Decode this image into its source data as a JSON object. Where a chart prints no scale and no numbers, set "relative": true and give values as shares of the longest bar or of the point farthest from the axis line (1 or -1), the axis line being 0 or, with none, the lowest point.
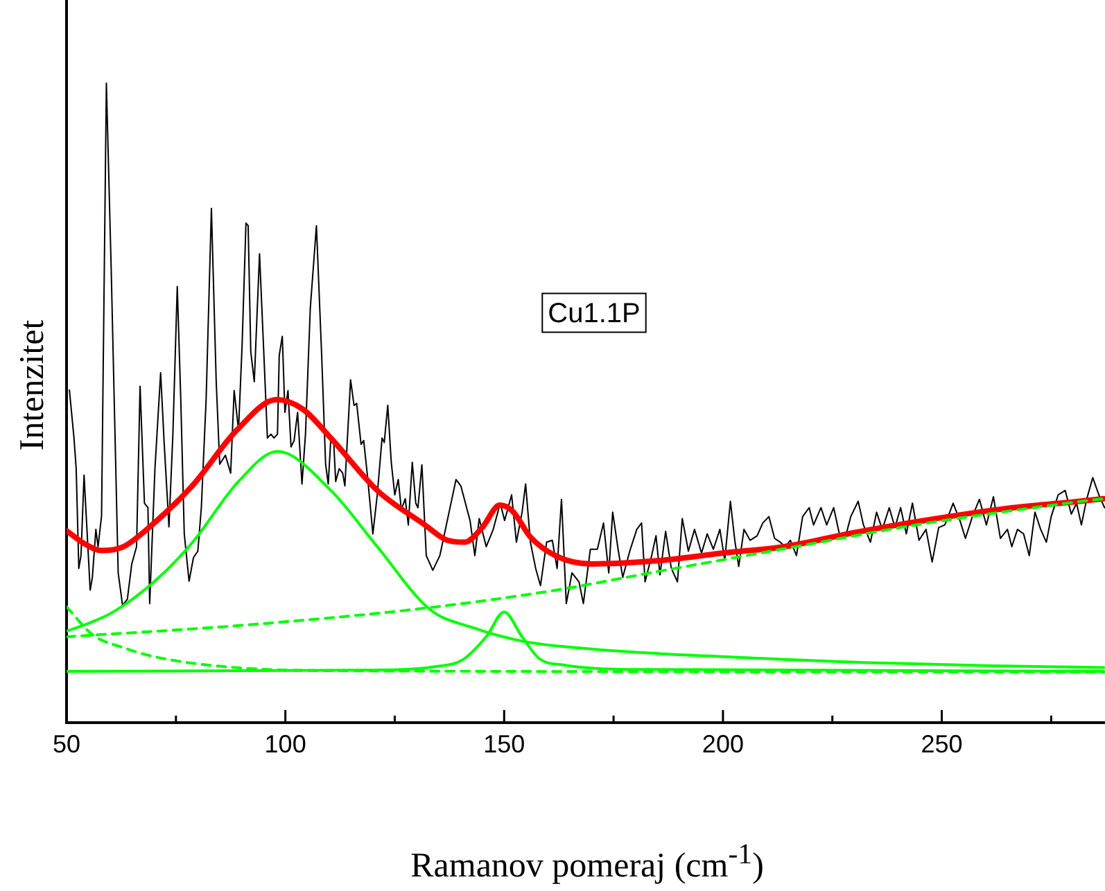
{
  "chart_data": {
    "type": "line",
    "xlabel": "Ramanov pomeraj (cm$^{-1}$)",
    "ylabel": "Intenzitet",
    "annotations": [
      "Cu1.1P"
    ],
    "relative": true,
    "grid": false,
    "legend": false,
    "marker": "none",
    "xlim": [
      50,
      287.3
    ],
    "xticks": [
      50,
      {
        "value": 75,
        "label": null
      },
      100,
      {
        "value": 125,
        "label": null
      },
      150,
      {
        "value": 175,
        "label": null
      },
      200,
      {
        "value": 225,
        "label": null
      },
      250,
      {
        "value": 275,
        "label": null
      }
    ],
    "series": [
      {
        "color": "#000000",
        "line_style": "solid",
        "x": [
          50.65,
          51.7,
          52.2,
          52.8,
          53.3,
          54.0,
          55.4,
          55.9,
          56.7,
          57.2,
          58.0,
          59.1,
          60.2,
          61.8,
          62.8,
          63.9,
          64.9,
          66.0,
          66.8,
          67.8,
          68.6,
          69.0,
          70.2,
          71.5,
          72.3,
          73.4,
          74.3,
          75.3,
          76.1,
          76.9,
          78.0,
          79.0,
          80.0,
          80.8,
          81.9,
          83.1,
          84.2,
          85.0,
          86.3,
          87.5,
          88.3,
          89.3,
          90.1,
          91.0,
          91.5,
          92.1,
          92.9,
          94.1,
          95.1,
          95.9,
          96.7,
          97.4,
          98.2,
          98.6,
          99.3,
          99.9,
          100.6,
          101.3,
          102.0,
          102.8,
          103.8,
          104.6,
          105.7,
          107.1,
          108.3,
          109.2,
          109.8,
          110.4,
          111.0,
          111.5,
          112.3,
          113.1,
          113.6,
          114.9,
          115.7,
          116.3,
          117.3,
          117.9,
          118.7,
          120.0,
          121.0,
          122.1,
          122.6,
          123.4,
          124.2,
          125.0,
          125.8,
          126.5,
          127.4,
          128.1,
          129.0,
          129.8,
          130.3,
          131.2,
          132.2,
          133.7,
          135.3,
          139.0,
          140.1,
          142.2,
          143.3,
          144.3,
          145.9,
          147.5,
          149.1,
          150.1,
          151.7,
          152.8,
          154.1,
          154.9,
          156.0,
          157.2,
          158.3,
          159.7,
          161.0,
          162.1,
          163.1,
          164.2,
          165.5,
          167.1,
          168.1,
          169.7,
          171.3,
          172.7,
          173.9,
          174.8,
          176.1,
          177.1,
          178.7,
          180.3,
          181.4,
          182.2,
          183.7,
          184.7,
          185.6,
          186.9,
          188.2,
          189.6,
          190.7,
          192.1,
          193.5,
          195.1,
          196.4,
          197.8,
          199.3,
          200.4,
          201.7,
          202.7,
          203.6,
          204.8,
          206.2,
          207.8,
          209.1,
          210.5,
          211.8,
          213.1,
          214.2,
          215.4,
          216.8,
          218.2,
          219.7,
          220.7,
          222.4,
          223.7,
          225.3,
          226.6,
          227.9,
          229.2,
          230.9,
          232.1,
          233.7,
          235.1,
          236.4,
          238.0,
          239.3,
          240.6,
          241.9,
          243.3,
          244.8,
          246.4,
          247.8,
          249.3,
          250.7,
          252.6,
          254.2,
          255.4,
          257.0,
          258.6,
          260.2,
          261.8,
          263.4,
          265.0,
          266.0,
          267.3,
          268.7,
          270.0,
          271.3,
          272.6,
          273.9,
          275.0,
          276.6,
          278.2,
          279.6,
          280.8,
          281.9,
          283.1,
          284.5,
          285.9,
          287.2
        ],
        "values": [
          0.52,
          0.445,
          0.397,
          0.241,
          0.261,
          0.387,
          0.207,
          0.227,
          0.302,
          0.275,
          0.323,
          1.0,
          0.71,
          0.234,
          0.183,
          0.193,
          0.248,
          0.275,
          0.526,
          0.343,
          0.336,
          0.186,
          0.397,
          0.547,
          0.438,
          0.306,
          0.451,
          0.682,
          0.506,
          0.295,
          0.221,
          0.258,
          0.268,
          0.336,
          0.506,
          0.804,
          0.533,
          0.404,
          0.418,
          0.39,
          0.519,
          0.458,
          0.587,
          0.781,
          0.777,
          0.58,
          0.533,
          0.733,
          0.574,
          0.445,
          0.451,
          0.445,
          0.451,
          0.574,
          0.604,
          0.485,
          0.519,
          0.431,
          0.441,
          0.485,
          0.373,
          0.451,
          0.648,
          0.777,
          0.574,
          0.404,
          0.373,
          0.445,
          0.445,
          0.377,
          0.397,
          0.39,
          0.37,
          0.536,
          0.496,
          0.499,
          0.435,
          0.441,
          0.39,
          0.295,
          0.356,
          0.445,
          0.438,
          0.496,
          0.407,
          0.356,
          0.38,
          0.333,
          0.35,
          0.309,
          0.407,
          0.343,
          0.336,
          0.403,
          0.261,
          0.238,
          0.261,
          0.38,
          0.37,
          0.316,
          0.261,
          0.319,
          0.275,
          0.302,
          0.343,
          0.316,
          0.356,
          0.282,
          0.329,
          0.373,
          0.282,
          0.241,
          0.214,
          0.282,
          0.285,
          0.241,
          0.349,
          0.186,
          0.234,
          0.22,
          0.186,
          0.271,
          0.271,
          0.312,
          0.234,
          0.329,
          0.268,
          0.227,
          0.268,
          0.302,
          0.312,
          0.22,
          0.261,
          0.292,
          0.231,
          0.299,
          0.241,
          0.22,
          0.319,
          0.268,
          0.302,
          0.265,
          0.295,
          0.271,
          0.302,
          0.254,
          0.346,
          0.285,
          0.244,
          0.302,
          0.285,
          0.292,
          0.312,
          0.322,
          0.288,
          0.282,
          0.275,
          0.285,
          0.261,
          0.322,
          0.336,
          0.309,
          0.336,
          0.309,
          0.336,
          0.295,
          0.288,
          0.322,
          0.346,
          0.309,
          0.282,
          0.329,
          0.302,
          0.336,
          0.305,
          0.336,
          0.295,
          0.343,
          0.285,
          0.302,
          0.251,
          0.305,
          0.309,
          0.343,
          0.315,
          0.288,
          0.322,
          0.349,
          0.309,
          0.353,
          0.288,
          0.302,
          0.275,
          0.302,
          0.295,
          0.261,
          0.329,
          0.302,
          0.282,
          0.322,
          0.356,
          0.363,
          0.326,
          0.343,
          0.309,
          0.349,
          0.383,
          0.356,
          0.336
        ]
      },
      {
        "color": "#ff0000",
        "line_style": "solid",
        "x": [
          50,
          54,
          58,
          63,
          68,
          78.7,
          89,
          98,
          104,
          110.5,
          121,
          131.7,
          137,
          141,
          145,
          149,
          152,
          156,
          162,
          170,
          185,
          200,
          214,
          230,
          246,
          265,
          280,
          287
        ],
        "values": [
          0.3,
          0.28,
          0.269,
          0.275,
          0.3,
          0.37,
          0.458,
          0.505,
          0.49,
          0.444,
          0.363,
          0.31,
          0.285,
          0.282,
          0.305,
          0.34,
          0.33,
          0.29,
          0.26,
          0.248,
          0.253,
          0.265,
          0.275,
          0.297,
          0.316,
          0.335,
          0.345,
          0.35
        ]
      },
      {
        "color": "#00ff00",
        "line_style": "solid",
        "x": [
          50,
          55,
          60.7,
          70,
          78.7,
          89.3,
          98.2,
          110.4,
          121,
          133,
          143,
          154.3,
          170,
          185,
          210,
          231,
          260,
          287
        ],
        "values": [
          0.143,
          0.155,
          0.173,
          0.22,
          0.281,
          0.377,
          0.424,
          0.363,
          0.275,
          0.177,
          0.148,
          0.127,
          0.115,
          0.108,
          0.1,
          0.094,
          0.089,
          0.086
        ]
      },
      {
        "color": "#00ff00",
        "line_style": "solid",
        "x": [
          50,
          120,
          135,
          140.5,
          146,
          150,
          154,
          158,
          163.5,
          180,
          287
        ],
        "values": [
          0.08,
          0.082,
          0.088,
          0.098,
          0.135,
          0.173,
          0.135,
          0.1,
          0.09,
          0.083,
          0.08
        ]
      },
      {
        "color": "#00ff00",
        "line_style": "dashed",
        "x": [
          50,
          90,
          129.5,
          160,
          185,
          215,
          245,
          277.6,
          287
        ],
        "values": [
          0.134,
          0.152,
          0.177,
          0.205,
          0.236,
          0.273,
          0.31,
          0.342,
          0.35
        ]
      },
      {
        "color": "#00ff00",
        "line_style": "dashed",
        "x": [
          50,
          56,
          63,
          70,
          85,
          110,
          287
        ],
        "values": [
          0.181,
          0.137,
          0.117,
          0.103,
          0.088,
          0.081,
          0.079
        ]
      }
    ]
  }
}
